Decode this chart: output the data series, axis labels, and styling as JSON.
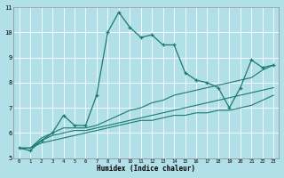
{
  "xlabel": "Humidex (Indice chaleur)",
  "background_color": "#b2e0e8",
  "grid_color": "#ffffff",
  "line_color": "#1a7a6e",
  "xlim": [
    -0.5,
    23.5
  ],
  "ylim": [
    5,
    11
  ],
  "yticks": [
    5,
    6,
    7,
    8,
    9,
    10,
    11
  ],
  "xticks": [
    0,
    1,
    2,
    3,
    4,
    5,
    6,
    7,
    8,
    9,
    10,
    11,
    12,
    13,
    14,
    15,
    16,
    17,
    18,
    19,
    20,
    21,
    22,
    23
  ],
  "series_main": [
    5.4,
    5.3,
    5.7,
    6.0,
    6.7,
    6.3,
    6.3,
    7.5,
    10.0,
    10.8,
    10.2,
    9.8,
    9.9,
    9.5,
    9.5,
    8.4,
    8.1,
    8.0,
    7.8,
    7.0,
    7.8,
    8.9,
    8.6,
    8.7
  ],
  "series_trend1": [
    5.4,
    5.4,
    5.8,
    6.0,
    6.2,
    6.2,
    6.2,
    6.3,
    6.5,
    6.7,
    6.9,
    7.0,
    7.2,
    7.3,
    7.5,
    7.6,
    7.7,
    7.8,
    7.9,
    8.0,
    8.1,
    8.2,
    8.5,
    8.7
  ],
  "series_trend2": [
    5.4,
    5.4,
    5.7,
    5.9,
    6.0,
    6.1,
    6.1,
    6.2,
    6.3,
    6.4,
    6.5,
    6.6,
    6.7,
    6.8,
    6.9,
    7.0,
    7.1,
    7.2,
    7.3,
    7.4,
    7.5,
    7.6,
    7.7,
    7.8
  ],
  "series_trend3": [
    5.4,
    5.4,
    5.6,
    5.7,
    5.8,
    5.9,
    6.0,
    6.1,
    6.2,
    6.3,
    6.4,
    6.5,
    6.5,
    6.6,
    6.7,
    6.7,
    6.8,
    6.8,
    6.9,
    6.9,
    7.0,
    7.1,
    7.3,
    7.5
  ]
}
